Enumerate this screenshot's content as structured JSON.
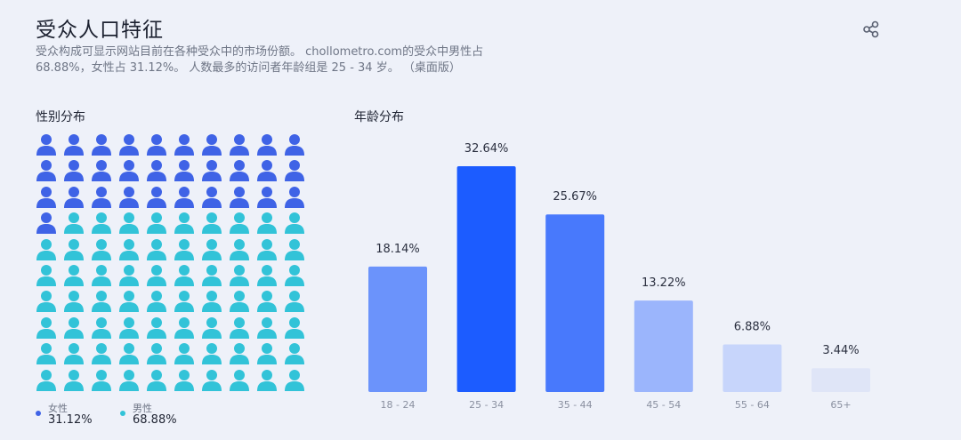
{
  "header": {
    "title": "受众人口特征",
    "description_line1": "受众构成可显示网站目前在各种受众中的市场份额。 chollometro.com的受众中男性占",
    "description_line2": "68.88%，女性占 31.12%。 人数最多的访问者年龄组是 25 - 34 岁。 （桌面版）"
  },
  "share_icon": "share-icon",
  "gender": {
    "title": "性别分布",
    "icon": "person-icon",
    "total_icons": 100,
    "female_icons": 31,
    "female": {
      "label": "女性",
      "value": "31.12%",
      "color": "#3f63e6"
    },
    "male": {
      "label": "男性",
      "value": "68.88%",
      "color": "#32c3d8"
    }
  },
  "age": {
    "title": "年龄分布"
  },
  "chart_data": {
    "type": "bar",
    "title": "年龄分布",
    "categories": [
      "18 - 24",
      "25 - 34",
      "35 - 44",
      "45 - 54",
      "55 - 64",
      "65+"
    ],
    "values": [
      18.14,
      32.64,
      25.67,
      13.22,
      6.88,
      3.44
    ],
    "value_labels": [
      "18.14%",
      "32.64%",
      "25.67%",
      "13.22%",
      "6.88%",
      "3.44%"
    ],
    "colors": [
      "#6b93fb",
      "#1c5cff",
      "#4879fc",
      "#9bb5fc",
      "#c7d5fb",
      "#dfe5f7"
    ],
    "ylim": [
      0,
      35
    ],
    "grid": false,
    "legend": "none"
  }
}
